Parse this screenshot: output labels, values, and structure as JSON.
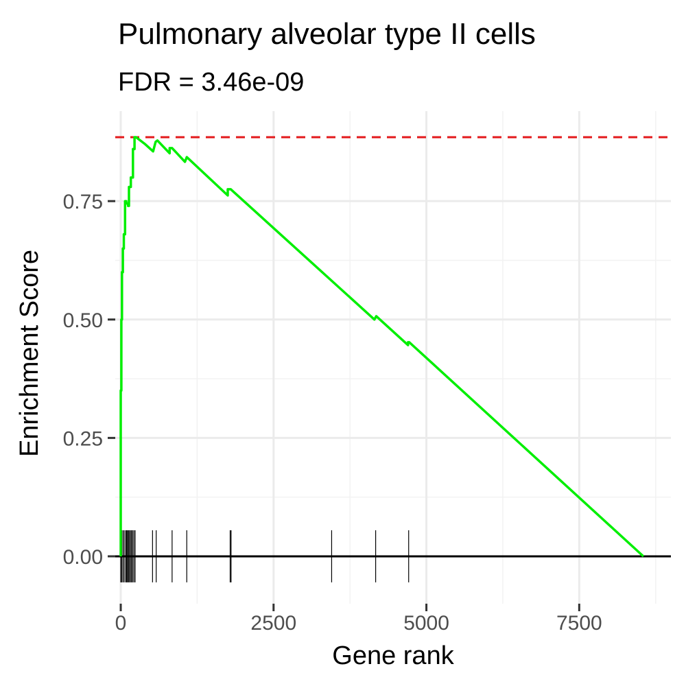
{
  "chart_data": {
    "type": "line",
    "title": "Pulmonary alveolar type II cells",
    "subtitle": "FDR = 3.46e-09",
    "xlabel": "Gene rank",
    "ylabel": "Enrichment Score",
    "xlim": [
      -90,
      9000
    ],
    "ylim": [
      -0.1,
      0.94
    ],
    "x_ticks": [
      0,
      2500,
      5000,
      7500
    ],
    "x_tick_labels": [
      "0",
      "2500",
      "5000",
      "7500"
    ],
    "y_ticks": [
      0,
      0.25,
      0.5,
      0.75
    ],
    "y_tick_labels": [
      "0.00",
      "0.25",
      "0.50",
      "0.75"
    ],
    "grid": true,
    "max_es": 0.885,
    "series": [
      {
        "color": "#00ee00",
        "x": [
          0,
          0,
          10,
          10,
          20,
          20,
          35,
          35,
          50,
          50,
          70,
          70,
          90,
          90,
          120,
          120,
          135,
          135,
          165,
          165,
          200,
          200,
          225,
          225,
          250,
          400,
          400,
          530,
          530,
          570,
          570,
          600,
          800,
          800,
          840,
          1050,
          1050,
          1080,
          1750,
          1750,
          1800,
          4150,
          4150,
          4180,
          4700,
          4700,
          4720,
          8550
        ],
        "y": [
          0,
          0.35,
          0.35,
          0.5,
          0.5,
          0.6,
          0.6,
          0.65,
          0.65,
          0.68,
          0.68,
          0.75,
          0.75,
          0.745,
          0.745,
          0.74,
          0.74,
          0.78,
          0.78,
          0.8,
          0.8,
          0.86,
          0.86,
          0.885,
          0.885,
          0.87,
          0.87,
          0.855,
          0.855,
          0.875,
          0.875,
          0.878,
          0.851,
          0.862,
          0.862,
          0.833,
          0.833,
          0.843,
          0.762,
          0.775,
          0.775,
          0.5,
          0.5,
          0.507,
          0.446,
          0.452,
          0.452,
          0
        ]
      }
    ],
    "gene_hits": [
      0,
      15,
      35,
      55,
      80,
      95,
      110,
      125,
      140,
      160,
      175,
      195,
      215,
      235,
      520,
      580,
      840,
      1080,
      1790,
      1805,
      3450,
      4170,
      4710
    ]
  }
}
